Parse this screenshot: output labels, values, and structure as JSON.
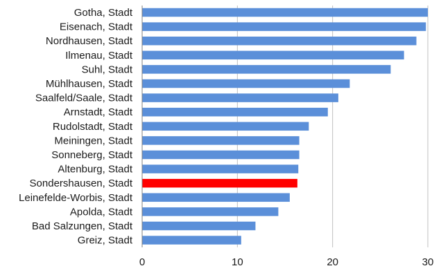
{
  "chart_data": {
    "type": "bar",
    "orientation": "horizontal",
    "categories": [
      "Gotha, Stadt",
      "Eisenach, Stadt",
      "Nordhausen, Stadt",
      "Ilmenau, Stadt",
      "Suhl, Stadt",
      "Mühlhausen, Stadt",
      "Saalfeld/Saale, Stadt",
      "Arnstadt, Stadt",
      "Rudolstadt, Stadt",
      "Meiningen, Stadt",
      "Sonneberg, Stadt",
      "Altenburg, Stadt",
      "Sondershausen, Stadt",
      "Leinefelde-Worbis, Stadt",
      "Apolda, Stadt",
      "Bad Salzungen, Stadt",
      "Greiz, Stadt"
    ],
    "values": [
      30.0,
      29.8,
      28.8,
      27.5,
      26.1,
      21.8,
      20.6,
      19.5,
      17.5,
      16.5,
      16.5,
      16.4,
      16.3,
      15.5,
      14.3,
      11.9,
      10.4
    ],
    "highlight_category": "Sondershausen, Stadt",
    "colors": {
      "bar": "#5B8FD9",
      "highlight": "#FF0000",
      "grid": "#BFBFBF"
    },
    "title": "",
    "xlabel": "",
    "ylabel": "",
    "xlim": [
      0,
      30
    ],
    "xticks": [
      0,
      10,
      20,
      30
    ],
    "grid": true,
    "legend": false
  }
}
